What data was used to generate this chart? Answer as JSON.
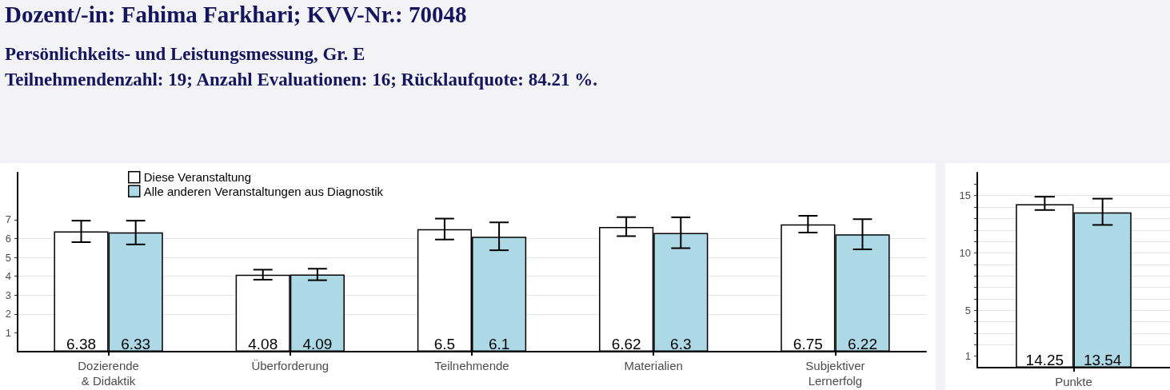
{
  "chart_data": [
    {
      "type": "bar",
      "title": "Dozent/-in: Fahima Farkhari; KVV-Nr.: 70048",
      "subtitle": "Persönlichkeits- und Leistungsmessung, Gr. E",
      "annotations": [
        "Teilnehmendenzahl: 19; Anzahl Evaluationen: 16; Rücklaufquote: 84.21 %."
      ],
      "categories": [
        "Dozierende\n& Didaktik",
        "Überforderung",
        "Teilnehmende",
        "Materialien",
        "Subjektiver\nLernerfolg"
      ],
      "series": [
        {
          "name": "Diese Veranstaltung",
          "color": "#ffffff",
          "values": [
            6.38,
            4.08,
            6.5,
            6.62,
            6.75
          ],
          "errors": [
            [
              5.81,
              6.95
            ],
            [
              3.82,
              4.35
            ],
            [
              5.95,
              7.06
            ],
            [
              6.13,
              7.14
            ],
            [
              6.32,
              7.21
            ]
          ]
        },
        {
          "name": "Alle anderen Veranstaltungen aus Diagnostik",
          "color": "#add8e6",
          "values": [
            6.33,
            4.09,
            6.1,
            6.3,
            6.22
          ],
          "errors": [
            [
              5.69,
              6.95
            ],
            [
              3.79,
              4.4
            ],
            [
              5.38,
              6.86
            ],
            [
              5.49,
              7.13
            ],
            [
              5.43,
              7.03
            ]
          ]
        }
      ],
      "ylim": [
        0,
        9.5
      ],
      "yticks": [
        1,
        2,
        3,
        4,
        5,
        6,
        7
      ],
      "grid": "y",
      "legend": "top left",
      "data_labels": true
    },
    {
      "type": "bar",
      "categories": [
        "Punkte"
      ],
      "series": [
        {
          "color": "#ffffff",
          "values": [
            14.25
          ],
          "errors": [
            [
              13.74,
              14.9
            ]
          ]
        },
        {
          "color": "#add8e6",
          "values": [
            13.54
          ],
          "errors": [
            [
              12.44,
              14.73
            ]
          ]
        }
      ],
      "ylim": [
        0,
        17
      ],
      "yticks": [
        1,
        {
          "value": 2,
          "label": null
        },
        {
          "value": 3,
          "label": null
        },
        {
          "value": 4,
          "label": null
        },
        5,
        {
          "value": 6,
          "label": null
        },
        {
          "value": 7,
          "label": null
        },
        {
          "value": 8,
          "label": null
        },
        {
          "value": 9,
          "label": null
        },
        10,
        {
          "value": 11,
          "label": null
        },
        {
          "value": 12,
          "label": null
        },
        {
          "value": 13,
          "label": null
        },
        {
          "value": 14,
          "label": null
        },
        15,
        {
          "value": 16,
          "label": null
        }
      ],
      "grid": "y",
      "data_labels": true
    }
  ]
}
